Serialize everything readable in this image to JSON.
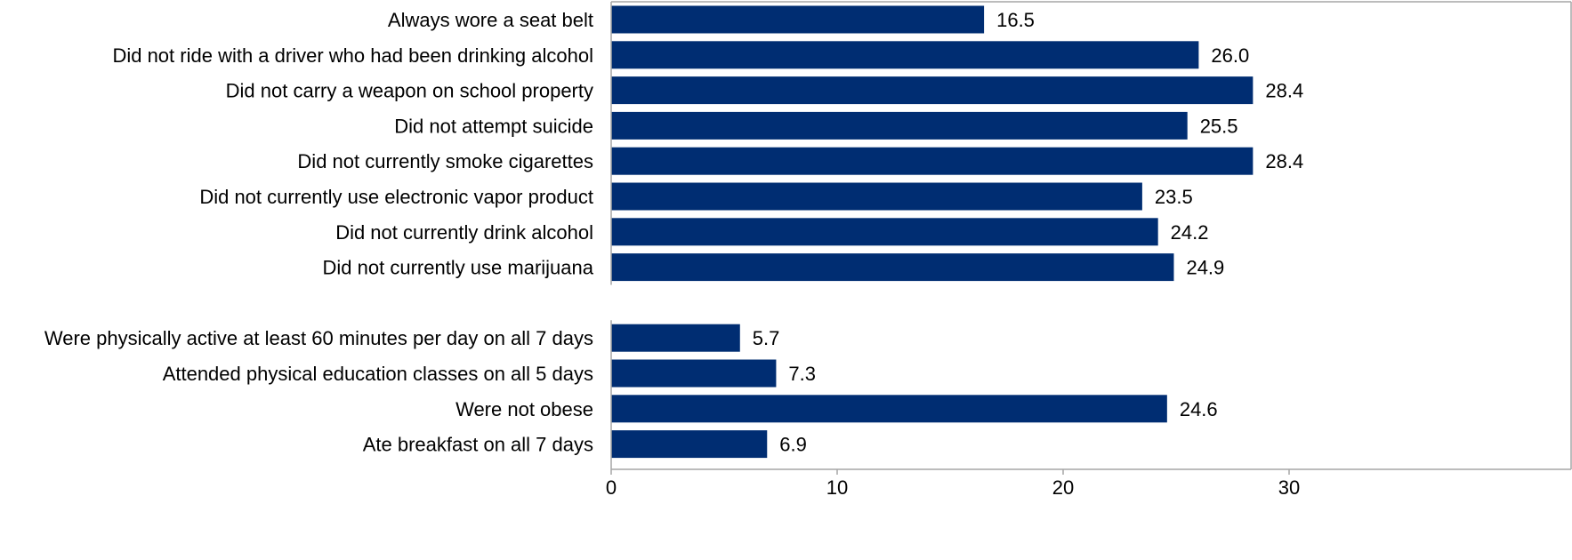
{
  "chart_data": {
    "type": "bar",
    "orientation": "horizontal",
    "title": "",
    "xlabel": "",
    "ylabel": "",
    "xlim": [
      0,
      35
    ],
    "xticks": [
      0,
      10,
      20,
      30
    ],
    "grid": false,
    "bar_color": "#002D72",
    "groups": [
      {
        "categories": [
          "Always wore a seat belt",
          "Did not ride with a driver who had been drinking alcohol",
          "Did not carry a weapon on school property",
          "Did not attempt suicide",
          "Did not currently smoke cigarettes ",
          "Did not currently use electronic vapor product",
          "Did not currently drink alcohol",
          "Did not currently use marijuana"
        ],
        "values": [
          16.5,
          26.0,
          28.4,
          25.5,
          28.4,
          23.5,
          24.2,
          24.9
        ]
      },
      {
        "categories": [
          "Were physically active at least 60 minutes per day on all 7 days",
          "Attended physical education classes on all 5 days",
          "Were not obese",
          "Ate breakfast on all 7 days"
        ],
        "values": [
          5.7,
          7.3,
          24.6,
          6.9
        ]
      }
    ]
  }
}
